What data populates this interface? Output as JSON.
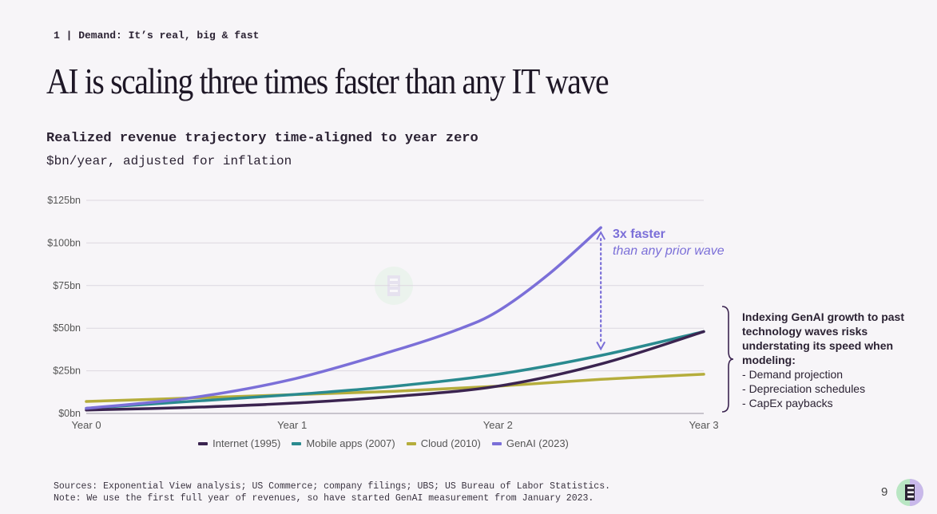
{
  "section": "1 | Demand: It’s real, big & fast",
  "title": "AI is scaling three times faster than any IT wave",
  "subtitle": "Realized revenue trajectory time-aligned to year zero",
  "units": "$bn/year, adjusted for inflation",
  "annotation": {
    "title": "3x faster",
    "subtitle": "than any prior wave"
  },
  "note": {
    "heading": "Indexing GenAI growth to past technology waves risks understating its speed when modeling:",
    "items": [
      "Demand projection",
      "Depreciation schedules",
      "CapEx paybacks"
    ]
  },
  "sources": "Sources: Exponential View analysis; US Commerce; company filings; UBS; US Bureau of Labor Statistics.",
  "sources_note": "Note: We use the first full year of revenues, so have started GenAI measurement from January 2023.",
  "page_number": "9",
  "chart_data": {
    "type": "line",
    "x": [
      0,
      0.5,
      1,
      1.5,
      2,
      2.5,
      3
    ],
    "x_ticks": [
      0,
      1,
      2,
      3
    ],
    "x_tick_labels": [
      "Year 0",
      "Year 1",
      "Year 2",
      "Year 3"
    ],
    "y_ticks": [
      0,
      25,
      50,
      75,
      100,
      125
    ],
    "y_tick_labels": [
      "$0bn",
      "$25bn",
      "$50bn",
      "$75bn",
      "$100bn",
      "$125bn"
    ],
    "xlim": [
      0,
      3
    ],
    "ylim": [
      0,
      125
    ],
    "grid": true,
    "legend_position": "bottom",
    "series": [
      {
        "name": "Internet (1995)",
        "color": "#3b2450",
        "x": [
          0,
          0.5,
          1,
          1.5,
          2,
          2.5,
          3
        ],
        "values": [
          2,
          3.5,
          6,
          10,
          16,
          29,
          48
        ]
      },
      {
        "name": "Mobile apps (2007)",
        "color": "#2a8a8f",
        "x": [
          0,
          0.5,
          1,
          1.5,
          2,
          2.5,
          3
        ],
        "values": [
          3,
          7,
          11,
          16,
          23,
          34,
          48
        ]
      },
      {
        "name": "Cloud (2010)",
        "color": "#b5ad3c",
        "x": [
          0,
          0.5,
          1,
          1.5,
          2,
          2.5,
          3
        ],
        "values": [
          7,
          9,
          11,
          13,
          16,
          20,
          23
        ]
      },
      {
        "name": "GenAI (2023)",
        "color": "#7b6fd8",
        "x": [
          0,
          0.5,
          1,
          1.5,
          1.8,
          2,
          2.25,
          2.5
        ],
        "values": [
          3,
          9,
          20,
          37,
          49,
          60,
          82,
          109
        ]
      }
    ]
  }
}
